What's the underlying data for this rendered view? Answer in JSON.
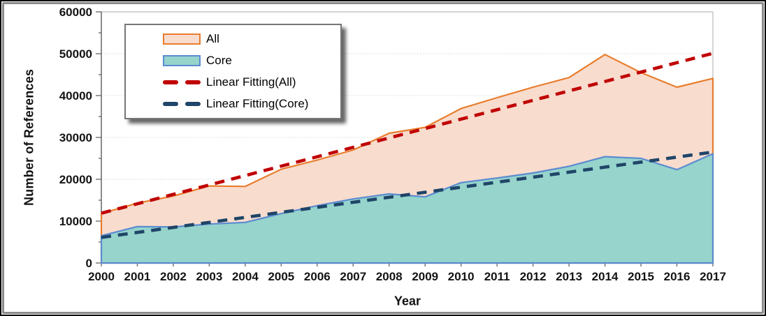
{
  "chart_data": {
    "type": "area",
    "title": "",
    "xlabel": "Year",
    "ylabel": "Number of References",
    "categories": [
      "2000",
      "2001",
      "2002",
      "2003",
      "2004",
      "2005",
      "2006",
      "2007",
      "2008",
      "2009",
      "2010",
      "2011",
      "2012",
      "2013",
      "2014",
      "2015",
      "2016",
      "2017"
    ],
    "series": [
      {
        "name": "All",
        "type": "area",
        "values": [
          11800,
          14300,
          16000,
          18400,
          18300,
          22400,
          24600,
          27000,
          31000,
          32400,
          36900,
          39500,
          42000,
          44300,
          49800,
          45500,
          42000,
          44100
        ],
        "line_color": "#e87d2d",
        "fill_color": "#f8dcce"
      },
      {
        "name": "Core",
        "type": "area",
        "values": [
          6500,
          8700,
          8600,
          9300,
          9700,
          11800,
          13700,
          15300,
          16500,
          15800,
          19200,
          20300,
          21500,
          23100,
          25400,
          25000,
          22300,
          26100
        ],
        "line_color": "#5b8bd0",
        "fill_color": "#96d4cc"
      },
      {
        "name": "Linear Fitting(All)",
        "type": "linear_fit",
        "fit_x": [
          2000,
          2017
        ],
        "fit_y": [
          11900,
          50100
        ],
        "color": "#c00000",
        "dashed": true
      },
      {
        "name": "Linear Fitting(Core)",
        "type": "linear_fit",
        "fit_x": [
          2000,
          2017
        ],
        "fit_y": [
          6100,
          26500
        ],
        "color": "#1f4568",
        "dashed": true
      }
    ],
    "ylim": [
      0,
      60000
    ],
    "y_major_step": 10000,
    "y_minor_step": 5000,
    "y_tick_labels": [
      "0",
      "10000",
      "20000",
      "30000",
      "40000",
      "50000",
      "60000"
    ],
    "grid": "horizontal-dotted",
    "legend_position": "upper-left"
  },
  "colors": {
    "axis_line": "#6e6e6e",
    "plot_border": "#c4c4c4",
    "gridline": "#d4d4d4",
    "tick_label": "#141414"
  }
}
